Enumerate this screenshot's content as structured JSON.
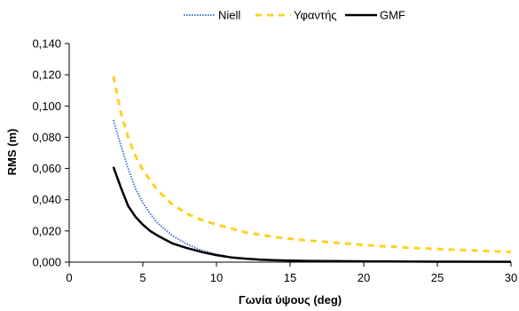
{
  "chart_data": {
    "type": "line",
    "title": "",
    "xlabel": "Γωνία ύψους (deg)",
    "ylabel": "RMS (m)",
    "xlim": [
      0,
      30
    ],
    "ylim": [
      0,
      0.14
    ],
    "xticks": [
      0,
      5,
      10,
      15,
      20,
      25,
      30
    ],
    "xtick_labels": [
      "0",
      "5",
      "10",
      "15",
      "20",
      "25",
      "30"
    ],
    "yticks": [
      0,
      0.02,
      0.04,
      0.06,
      0.08,
      0.1,
      0.12,
      0.14
    ],
    "ytick_labels": [
      "0,000",
      "0,020",
      "0,040",
      "0,060",
      "0,080",
      "0,100",
      "0,120",
      "0,140"
    ],
    "grid": false,
    "legend_position": "top-center",
    "series": [
      {
        "name": "Niell",
        "color": "#4a72d4",
        "style": "dotted-line-markers",
        "x": [
          3,
          3.5,
          4,
          4.5,
          5,
          5.5,
          6,
          7,
          8,
          9,
          10,
          11,
          12,
          13,
          14,
          15,
          16
        ],
        "y": [
          0.091,
          0.075,
          0.06,
          0.047,
          0.038,
          0.031,
          0.025,
          0.017,
          0.0115,
          0.0075,
          0.005,
          0.003,
          0.0022,
          0.0016,
          0.0013,
          0.0011,
          0.001
        ]
      },
      {
        "name": "Υφαντής",
        "color": "#ffd020",
        "style": "dashed",
        "x": [
          3,
          3.5,
          4,
          4.5,
          5,
          6,
          7,
          8,
          9,
          10,
          12,
          14,
          16,
          18,
          20,
          22,
          24,
          26,
          28,
          30
        ],
        "y": [
          0.119,
          0.096,
          0.08,
          0.068,
          0.059,
          0.046,
          0.037,
          0.031,
          0.027,
          0.024,
          0.019,
          0.016,
          0.014,
          0.0125,
          0.011,
          0.0098,
          0.0088,
          0.008,
          0.0073,
          0.0065
        ]
      },
      {
        "name": "GMF",
        "color": "#000000",
        "style": "solid",
        "x": [
          3,
          3.5,
          4,
          4.5,
          5,
          5.5,
          6,
          7,
          8,
          9,
          10,
          11,
          12,
          13,
          14,
          16,
          20,
          25,
          30
        ],
        "y": [
          0.061,
          0.048,
          0.036,
          0.029,
          0.024,
          0.02,
          0.017,
          0.012,
          0.009,
          0.0065,
          0.0045,
          0.003,
          0.0022,
          0.0016,
          0.0012,
          0.0008,
          0.0005,
          0.0003,
          0.0002
        ]
      }
    ]
  }
}
